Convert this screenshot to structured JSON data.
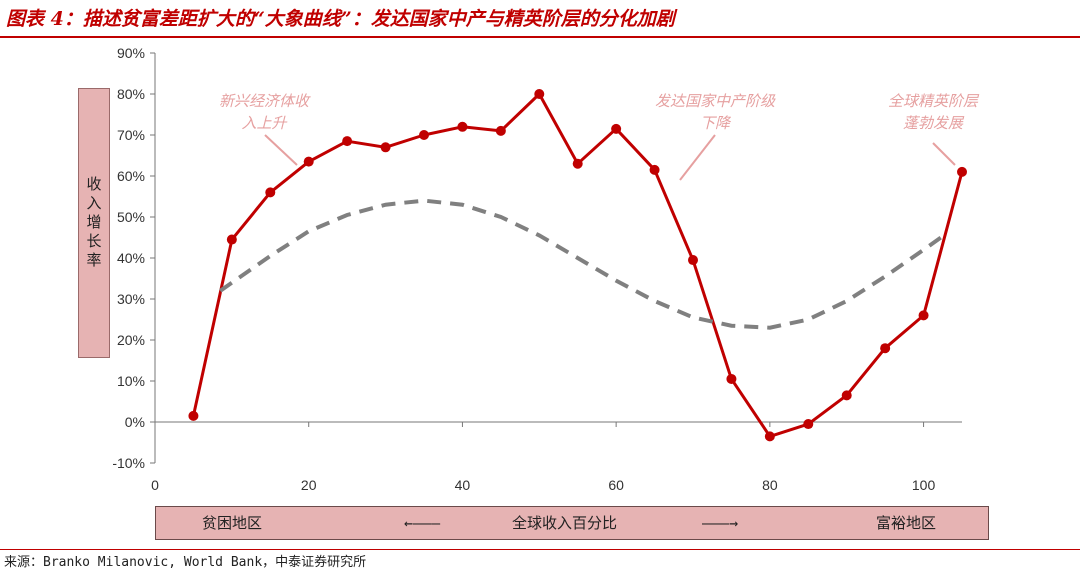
{
  "header": {
    "title": "图表 4：描述贫富差距扩大的“大象曲线”：发达国家中产与精英阶层的分化加剧"
  },
  "chart_data": {
    "type": "line",
    "ylabel": "收入增长率",
    "xlim": [
      0,
      105
    ],
    "ylim": [
      -10,
      90
    ],
    "x_ticks": [
      "0",
      "20",
      "40",
      "60",
      "80",
      "100"
    ],
    "y_ticks": [
      "90%",
      "80%",
      "70%",
      "60%",
      "50%",
      "40%",
      "30%",
      "20%",
      "10%",
      "0%",
      "-10%"
    ],
    "grid": false,
    "series": [
      {
        "style": "solid",
        "color": "#c00000",
        "points": [
          [
            5,
            1.5
          ],
          [
            10,
            44.5
          ],
          [
            15,
            56
          ],
          [
            20,
            63.5
          ],
          [
            25,
            68.5
          ],
          [
            30,
            67
          ],
          [
            35,
            70
          ],
          [
            40,
            72
          ],
          [
            45,
            71
          ],
          [
            50,
            80
          ],
          [
            55,
            63
          ],
          [
            60,
            71.5
          ],
          [
            65,
            61.5
          ],
          [
            70,
            39.5
          ],
          [
            75,
            10.5
          ],
          [
            80,
            -3.5
          ],
          [
            85,
            -0.5
          ],
          [
            90,
            6.5
          ],
          [
            95,
            18
          ],
          [
            100,
            26
          ],
          [
            105,
            61
          ]
        ]
      },
      {
        "style": "dashed",
        "color": "#808080",
        "points": [
          [
            8.5,
            32
          ],
          [
            15,
            40.5
          ],
          [
            20,
            46.5
          ],
          [
            25,
            50.5
          ],
          [
            30,
            53
          ],
          [
            35,
            54
          ],
          [
            40,
            53
          ],
          [
            45,
            50
          ],
          [
            50,
            45.5
          ],
          [
            55,
            40
          ],
          [
            60,
            34.5
          ],
          [
            65,
            29.5
          ],
          [
            70,
            25.5
          ],
          [
            75,
            23.5
          ],
          [
            80,
            23
          ],
          [
            85,
            25
          ],
          [
            90,
            29.5
          ],
          [
            95,
            35.5
          ],
          [
            100,
            42
          ],
          [
            103,
            46
          ]
        ]
      }
    ],
    "annotations": [
      {
        "text": [
          "新兴经济体收",
          "入上升"
        ]
      },
      {
        "text": [
          "发达国家中产阶级",
          "下降"
        ]
      },
      {
        "text": [
          "全球精英阶层",
          "蓬勃发展"
        ]
      }
    ]
  },
  "bottom_band": {
    "left": "贫困地区",
    "middle": "全球收入百分比",
    "right": "富裕地区",
    "arrow_left": "←———",
    "arrow_right": "———→"
  },
  "source": "来源：Branko Milanovic, World Bank，中泰证券研究所",
  "colors": {
    "accent": "#c00000",
    "band_fill": "#e6b3b3",
    "dashed": "#808080",
    "annotation": "#e6a0a0"
  }
}
